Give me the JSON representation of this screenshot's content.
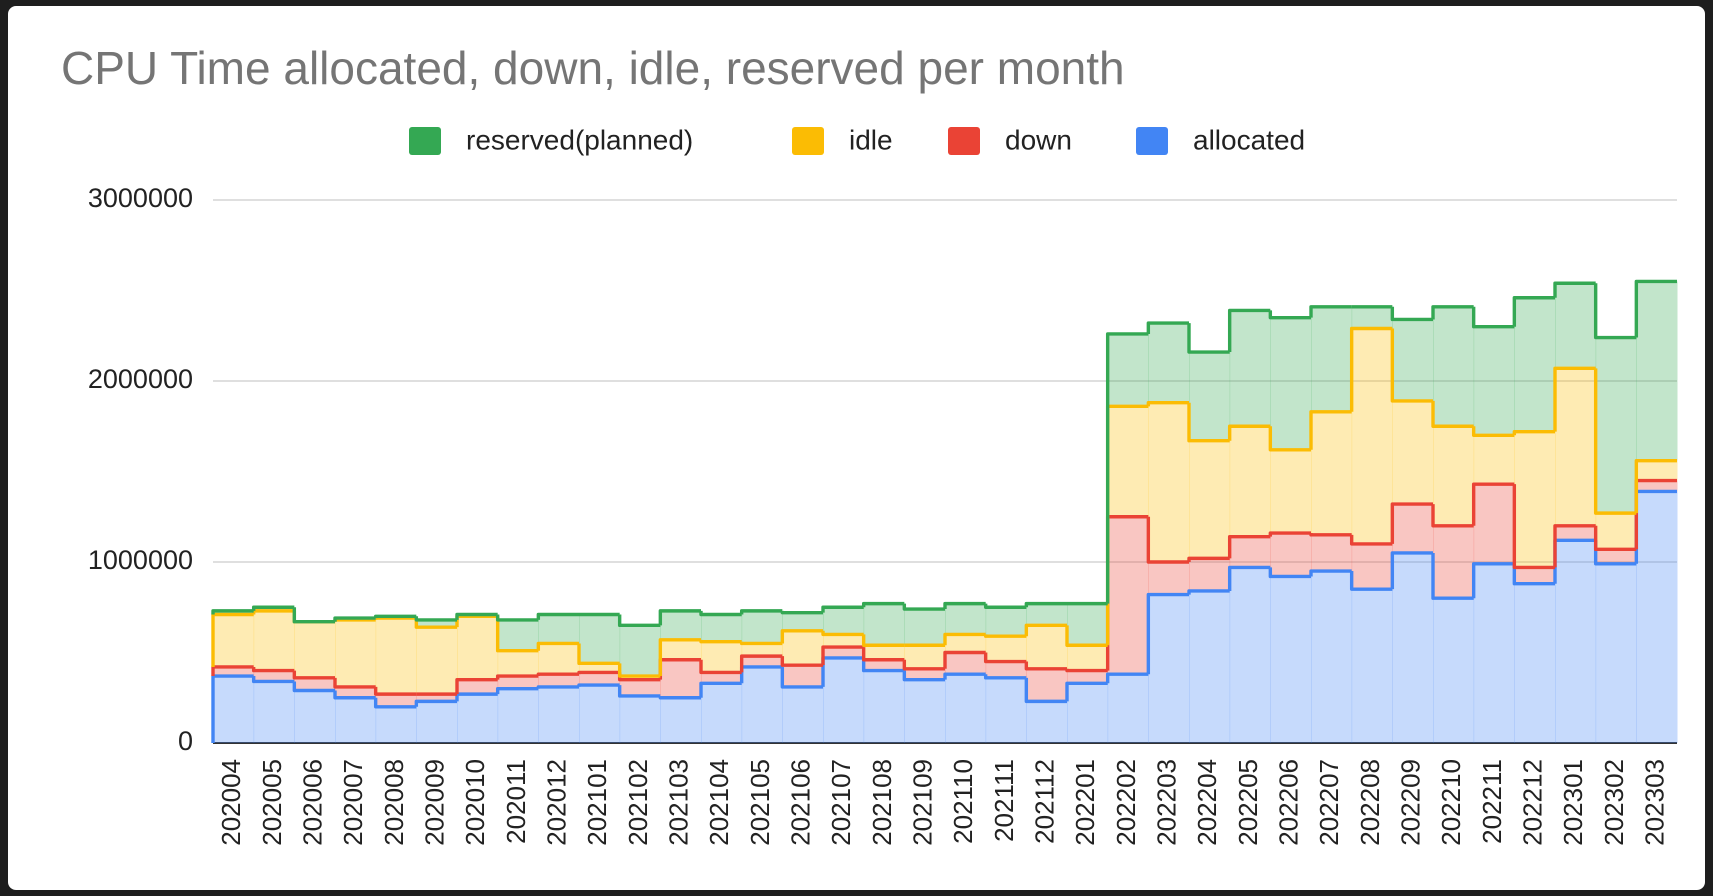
{
  "chart_data": {
    "type": "stepped-area",
    "title": "CPU Time allocated, down, idle, reserved per month",
    "categories": [
      "202004",
      "202005",
      "202006",
      "202007",
      "202008",
      "202009",
      "202010",
      "202011",
      "202012",
      "202101",
      "202102",
      "202103",
      "202104",
      "202105",
      "202106",
      "202107",
      "202108",
      "202109",
      "202110",
      "202111",
      "202112",
      "202201",
      "202202",
      "202203",
      "202204",
      "202205",
      "202206",
      "202207",
      "202208",
      "202209",
      "202210",
      "202211",
      "202212",
      "202301",
      "202302",
      "202303"
    ],
    "stacked": true,
    "series": [
      {
        "name": "allocated",
        "color": "#4285f4",
        "values": [
          370000,
          340000,
          290000,
          250000,
          200000,
          230000,
          270000,
          300000,
          310000,
          320000,
          260000,
          250000,
          330000,
          420000,
          310000,
          470000,
          400000,
          350000,
          380000,
          360000,
          230000,
          330000,
          380000,
          820000,
          840000,
          970000,
          920000,
          950000,
          850000,
          1050000,
          800000,
          990000,
          880000,
          1120000,
          990000,
          1390000
        ]
      },
      {
        "name": "down",
        "color": "#ea4335",
        "values": [
          50000,
          60000,
          70000,
          60000,
          70000,
          40000,
          80000,
          70000,
          70000,
          70000,
          90000,
          210000,
          60000,
          60000,
          120000,
          60000,
          60000,
          60000,
          120000,
          90000,
          180000,
          70000,
          870000,
          180000,
          180000,
          170000,
          240000,
          200000,
          250000,
          270000,
          400000,
          440000,
          90000,
          80000,
          80000,
          60000
        ]
      },
      {
        "name": "idle",
        "color": "#fbbc04",
        "values": [
          290000,
          330000,
          310000,
          370000,
          420000,
          370000,
          350000,
          140000,
          170000,
          50000,
          20000,
          110000,
          170000,
          70000,
          190000,
          70000,
          80000,
          130000,
          100000,
          140000,
          240000,
          140000,
          610000,
          880000,
          650000,
          610000,
          460000,
          680000,
          1190000,
          570000,
          550000,
          270000,
          750000,
          870000,
          200000,
          110000
        ]
      },
      {
        "name": "reserved(planned)",
        "color": "#34a853",
        "values": [
          20000,
          20000,
          0,
          10000,
          10000,
          40000,
          10000,
          170000,
          160000,
          270000,
          280000,
          160000,
          150000,
          180000,
          100000,
          150000,
          230000,
          200000,
          170000,
          160000,
          120000,
          230000,
          400000,
          440000,
          490000,
          640000,
          730000,
          580000,
          120000,
          450000,
          660000,
          600000,
          740000,
          470000,
          970000,
          990000
        ]
      }
    ],
    "ylim": [
      0,
      3000000
    ],
    "yticks": [
      0,
      1000000,
      2000000,
      3000000
    ],
    "grid": true,
    "legend": "top"
  }
}
